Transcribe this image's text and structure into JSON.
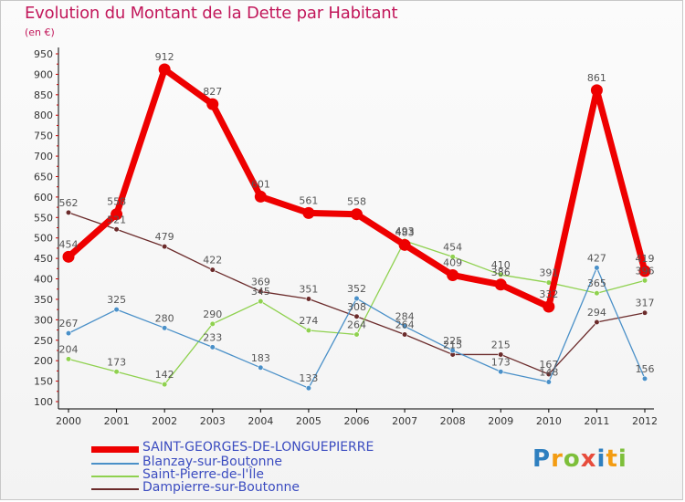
{
  "header": {
    "title": "Evolution du Montant de la Dette par Habitant",
    "subtitle": "(en €)"
  },
  "logo": {
    "text": "Proxiti",
    "colors": [
      "#2e7fbf",
      "#f39c12",
      "#7dbf3a",
      "#e74c3c",
      "#2e7fbf",
      "#f39c12",
      "#7dbf3a"
    ]
  },
  "chart_data": {
    "type": "line",
    "x": [
      "2000",
      "2001",
      "2002",
      "2003",
      "2004",
      "2005",
      "2006",
      "2007",
      "2008",
      "2009",
      "2010",
      "2011",
      "2012"
    ],
    "ylim": [
      100,
      950
    ],
    "yticks": [
      100,
      150,
      200,
      250,
      300,
      350,
      400,
      450,
      500,
      550,
      600,
      650,
      700,
      750,
      800,
      850,
      900,
      950
    ],
    "grid": false,
    "legend_position": "bottom-left",
    "series": [
      {
        "name": "SAINT-GEORGES-DE-LONGUEPIERRE",
        "color": "#ee0000",
        "values": [
          454,
          558,
          912,
          827,
          601,
          561,
          558,
          483,
          409,
          386,
          332,
          861,
          419
        ]
      },
      {
        "name": "Blanzay-sur-Boutonne",
        "color": "#4a90c8",
        "values": [
          267,
          325,
          280,
          233,
          183,
          133,
          352,
          284,
          225,
          173,
          148,
          427,
          156
        ]
      },
      {
        "name": "Saint-Pierre-de-l'Île",
        "color": "#8fd14f",
        "values": [
          204,
          173,
          142,
          290,
          345,
          274,
          264,
          493,
          454,
          410,
          391,
          365,
          396
        ]
      },
      {
        "name": "Dampierre-sur-Boutonne",
        "color": "#6b2b2b",
        "values": [
          562,
          521,
          479,
          422,
          369,
          351,
          308,
          264,
          215,
          215,
          167,
          294,
          317
        ]
      }
    ]
  }
}
